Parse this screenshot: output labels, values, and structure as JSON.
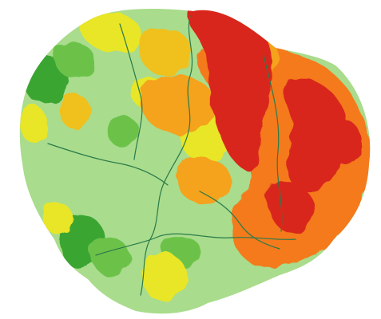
{
  "map": {
    "colors": {
      "background": "#ffffff",
      "light_green": "#a9dc8c",
      "mid_green": "#6cc24a",
      "dark_green": "#3aa532",
      "yellow": "#e8e628",
      "yellow_orange": "#f0c01e",
      "orange": "#f5a21e",
      "deep_orange": "#f47a1b",
      "red": "#d9261c",
      "river": "#2a7a4a"
    }
  }
}
